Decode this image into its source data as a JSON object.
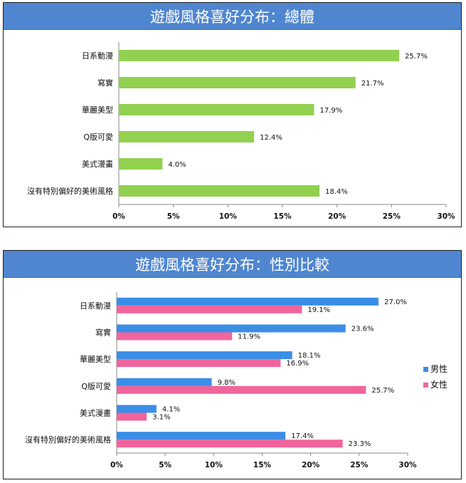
{
  "chart_data": [
    {
      "type": "bar",
      "orientation": "horizontal",
      "title": "遊戲風格喜好分布：總體",
      "categories": [
        "日系動漫",
        "寫實",
        "華麗美型",
        "Q版可愛",
        "美式漫畫",
        "沒有特別偏好的美術風格"
      ],
      "values": [
        25.7,
        21.7,
        17.9,
        12.4,
        4.0,
        18.4
      ],
      "value_labels": [
        "25.7%",
        "21.7%",
        "17.9%",
        "12.4%",
        "4.0%",
        "18.4%"
      ],
      "xlim": [
        0,
        30
      ],
      "xticks": [
        "0%",
        "5%",
        "10%",
        "15%",
        "20%",
        "25%",
        "30%"
      ],
      "color": "#92d050",
      "grid": false
    },
    {
      "type": "bar",
      "orientation": "horizontal",
      "title": "遊戲風格喜好分布：性別比較",
      "categories": [
        "日系動漫",
        "寫實",
        "華麗美型",
        "Q版可愛",
        "美式漫畫",
        "沒有特別偏好的美術風格"
      ],
      "series": [
        {
          "name": "男性",
          "values": [
            27.0,
            23.6,
            18.1,
            9.8,
            4.1,
            17.4
          ],
          "value_labels": [
            "27.0%",
            "23.6%",
            "18.1%",
            "9.8%",
            "4.1%",
            "17.4%"
          ],
          "color": "#3a8ee6"
        },
        {
          "name": "女性",
          "values": [
            19.1,
            11.9,
            16.9,
            25.7,
            3.1,
            23.3
          ],
          "value_labels": [
            "19.1%",
            "11.9%",
            "16.9%",
            "25.7%",
            "3.1%",
            "23.3%"
          ],
          "color": "#f0659c"
        }
      ],
      "xlim": [
        0,
        30
      ],
      "xticks": [
        "0%",
        "5%",
        "10%",
        "15%",
        "20%",
        "25%",
        "30%"
      ],
      "legend": "right",
      "grid": false
    }
  ]
}
